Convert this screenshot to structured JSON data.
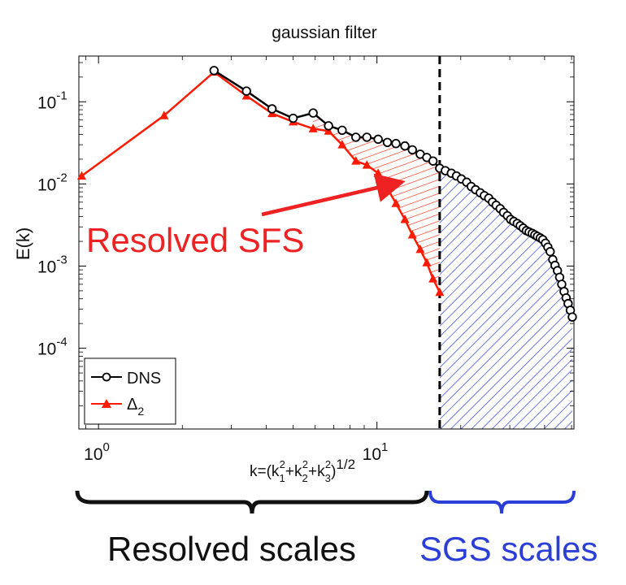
{
  "chart_data": {
    "type": "line",
    "title": "gaussian filter",
    "xlabel": "k=(k",
    "xlabel_full": "k=(k1²+k2²+k3²)^1/2",
    "ylabel": "E(k)",
    "x_scale": "log",
    "y_scale": "log",
    "xlim": [
      0.85,
      51
    ],
    "ylim": [
      1.04e-05,
      0.36
    ],
    "x_ticks": [
      {
        "value": 1,
        "base": "10",
        "exp": "0"
      },
      {
        "value": 10,
        "base": "10",
        "exp": "1"
      }
    ],
    "y_ticks": [
      {
        "value": 0.1,
        "base": "10",
        "exp": "-1"
      },
      {
        "value": 0.01,
        "base": "10",
        "exp": "-2"
      },
      {
        "value": 0.001,
        "base": "10",
        "exp": "-3"
      },
      {
        "value": 0.0001,
        "base": "10",
        "exp": "-4"
      }
    ],
    "grid": false,
    "legend_position": "bottom-left",
    "cutoff_k": 16.8,
    "series": [
      {
        "name": "DNS",
        "color": "#000000",
        "marker": "circle",
        "x": [
          2.6,
          3.4,
          4.2,
          5.0,
          5.9,
          6.7,
          7.5,
          8.4,
          9.2,
          10.1,
          10.9,
          11.7,
          12.6,
          13.4,
          14.3,
          15.1,
          15.9,
          16.8,
          17.6,
          18.5,
          19.3,
          20.1,
          21.0,
          21.8,
          22.6,
          23.5,
          24.3,
          25.2,
          26.0,
          26.8,
          27.7,
          28.5,
          29.4,
          30.2,
          31.0,
          31.9,
          32.7,
          33.5,
          34.4,
          35.2,
          36.1,
          36.9,
          37.7,
          38.6,
          39.4,
          40.3,
          41.1,
          41.9,
          42.8,
          43.6,
          44.5,
          45.3,
          46.1,
          47.0,
          47.8,
          48.6,
          49.5,
          50.3
        ],
        "values": [
          0.24,
          0.135,
          0.082,
          0.063,
          0.073,
          0.051,
          0.045,
          0.037,
          0.037,
          0.035,
          0.032,
          0.031,
          0.029,
          0.026,
          0.023,
          0.021,
          0.019,
          0.0155,
          0.0145,
          0.0135,
          0.0125,
          0.0115,
          0.0105,
          0.0093,
          0.0085,
          0.0078,
          0.0072,
          0.0067,
          0.006,
          0.0055,
          0.005,
          0.0045,
          0.0041,
          0.0037,
          0.0035,
          0.0033,
          0.0031,
          0.0029,
          0.0027,
          0.0026,
          0.0025,
          0.0024,
          0.0023,
          0.0022,
          0.0021,
          0.0019,
          0.0017,
          0.0015,
          0.0012,
          0.00102,
          0.00088,
          0.00073,
          0.0006,
          0.00049,
          0.00041,
          0.00035,
          0.00029,
          0.00024
        ]
      },
      {
        "name": "Δ2",
        "color": "#ff1a00",
        "marker": "triangle",
        "x": [
          0.87,
          1.72,
          2.6,
          3.4,
          4.2,
          5.0,
          5.9,
          6.7,
          7.5,
          8.4,
          9.2,
          10.1,
          10.9,
          11.7,
          12.6,
          13.4,
          14.3,
          15.1,
          15.9,
          16.8
        ],
        "values": [
          0.0125,
          0.068,
          0.23,
          0.118,
          0.072,
          0.057,
          0.047,
          0.044,
          0.03,
          0.019,
          0.017,
          0.0135,
          0.0088,
          0.0058,
          0.0037,
          0.0024,
          0.0016,
          0.0011,
          0.0007,
          0.00048
        ]
      }
    ],
    "annotations": {
      "resolved_sfs": "Resolved SFS",
      "resolved_scales": "Resolved scales",
      "sgs_scales": "SGS scales"
    },
    "colors": {
      "dns": "#000000",
      "filtered": "#ff1a00",
      "sfs_annotation": "#ee2222",
      "sgs": "#2b3fd6",
      "cutoff_line": "#000000"
    }
  }
}
